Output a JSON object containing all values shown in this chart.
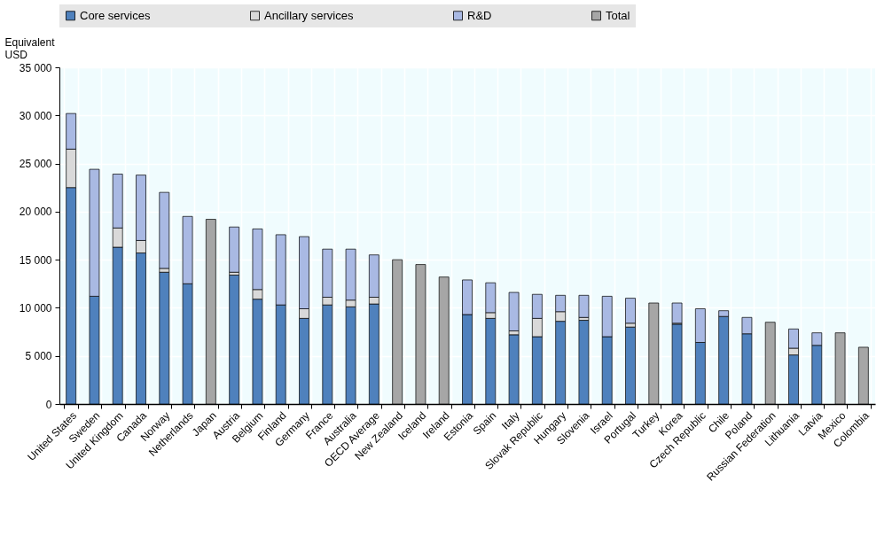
{
  "chart_data": {
    "type": "bar",
    "stacked": true,
    "ylabel": "Equivalent USD",
    "categories": [
      "United States",
      "Sweden",
      "United Kingdom",
      "Canada",
      "Norway",
      "Netherlands",
      "Japan",
      "Austria",
      "Belgium",
      "Finland",
      "Germany",
      "France",
      "Australia",
      "OECD Average",
      "New Zealand",
      "Iceland",
      "Ireland",
      "Estonia",
      "Spain",
      "Italy",
      "Slovak Republic",
      "Hungary",
      "Slovenia",
      "Israel",
      "Portugal",
      "Turkey",
      "Korea",
      "Czech Republic",
      "Chile",
      "Poland",
      "Russian Federation",
      "Lithuania",
      "Latvia",
      "Mexico",
      "Colombia"
    ],
    "series": [
      {
        "name": "Core services",
        "color": "#4f81bd",
        "values": [
          22500,
          11200,
          16300,
          15700,
          13700,
          12500,
          null,
          13400,
          10900,
          10300,
          8900,
          10300,
          10100,
          10400,
          null,
          null,
          null,
          9300,
          8900,
          7200,
          7000,
          8600,
          8700,
          7000,
          8000,
          null,
          8300,
          6400,
          9100,
          7300,
          null,
          5100,
          6100,
          null,
          null
        ]
      },
      {
        "name": "Ancillary services",
        "color": "#d9d9d9",
        "values": [
          4000,
          null,
          2000,
          1300,
          400,
          null,
          null,
          300,
          1000,
          null,
          1000,
          800,
          700,
          700,
          null,
          null,
          null,
          null,
          600,
          400,
          1900,
          1000,
          300,
          null,
          400,
          null,
          100,
          null,
          null,
          null,
          null,
          700,
          null,
          null,
          null
        ]
      },
      {
        "name": "R&D",
        "color": "#a9b9e3",
        "values": [
          3700,
          13200,
          5600,
          6800,
          7900,
          7000,
          null,
          4700,
          6300,
          7300,
          7500,
          5000,
          5300,
          4400,
          null,
          null,
          null,
          3600,
          3100,
          4000,
          2500,
          1700,
          2300,
          4200,
          2600,
          null,
          2100,
          3500,
          600,
          1700,
          null,
          2000,
          1300,
          null,
          null
        ]
      },
      {
        "name": "Total",
        "color": "#a6a6a6",
        "values": [
          null,
          null,
          null,
          null,
          null,
          null,
          19200,
          null,
          null,
          null,
          null,
          null,
          null,
          null,
          15000,
          14500,
          13200,
          null,
          null,
          null,
          null,
          null,
          null,
          null,
          null,
          10500,
          null,
          null,
          null,
          null,
          8500,
          null,
          null,
          7400,
          5900
        ]
      }
    ],
    "ylim": [
      0,
      35000
    ],
    "yticks": [
      0,
      {
        "value": 5000,
        "label": "5 000"
      },
      {
        "value": 10000,
        "label": "10 000"
      },
      {
        "value": 15000,
        "label": "15 000"
      },
      {
        "value": 20000,
        "label": "20 000"
      },
      {
        "value": 25000,
        "label": "25 000"
      },
      {
        "value": 30000,
        "label": "30 000"
      },
      {
        "value": 35000,
        "label": "35 000"
      }
    ],
    "grid": true,
    "legend": "top"
  }
}
